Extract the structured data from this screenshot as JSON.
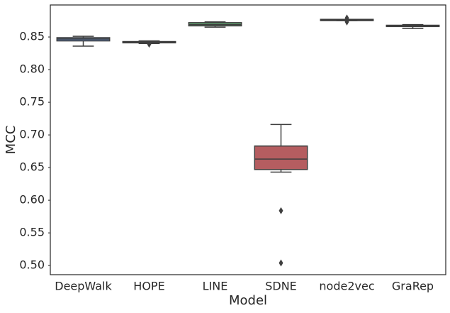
{
  "chart_data": {
    "type": "box",
    "x_label": "Model",
    "y_label": "MCC",
    "categories": [
      "DeepWalk",
      "HOPE",
      "LINE",
      "SDNE",
      "node2vec",
      "GraRep"
    ],
    "colors": [
      "#5975a4",
      "#cc8963",
      "#5f9e6e",
      "#b55d60",
      "#857aab",
      "#8d7866"
    ],
    "boxes": [
      {
        "low": 0.836,
        "q1": 0.844,
        "median": 0.847,
        "q3": 0.849,
        "high": 0.851,
        "outliers": []
      },
      {
        "low": 0.84,
        "q1": 0.841,
        "median": 0.842,
        "q3": 0.843,
        "high": 0.844,
        "outliers": [
          0.839
        ]
      },
      {
        "low": 0.865,
        "q1": 0.867,
        "median": 0.869,
        "q3": 0.872,
        "high": 0.873,
        "outliers": []
      },
      {
        "low": 0.643,
        "q1": 0.647,
        "median": 0.663,
        "q3": 0.683,
        "high": 0.716,
        "outliers": [
          0.584,
          0.504
        ]
      },
      {
        "low": 0.875,
        "q1": 0.875,
        "median": 0.876,
        "q3": 0.877,
        "high": 0.877,
        "outliers": [
          0.873,
          0.879
        ]
      },
      {
        "low": 0.863,
        "q1": 0.866,
        "median": 0.867,
        "q3": 0.868,
        "high": 0.869,
        "outliers": []
      }
    ],
    "ylim": [
      0.486,
      0.899
    ],
    "yticks": [
      {
        "value": 0.5,
        "label": "0.50"
      },
      0.55,
      {
        "value": 0.6,
        "label": "0.60"
      },
      0.65,
      {
        "value": 0.7,
        "label": "0.70"
      },
      0.75,
      {
        "value": 0.8,
        "label": "0.80"
      },
      0.85
    ],
    "grid": false
  }
}
